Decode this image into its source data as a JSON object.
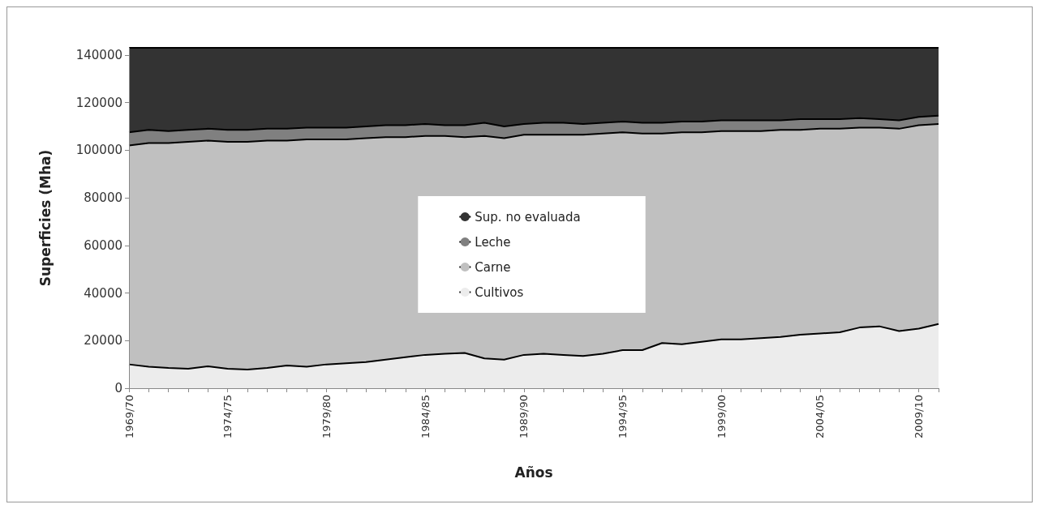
{
  "chart_data": {
    "type": "area",
    "stacked": true,
    "xlabel": "Años",
    "ylabel": "Superficies (Mha)",
    "categories": [
      "1969/70",
      null,
      null,
      null,
      null,
      "1974/75",
      null,
      null,
      null,
      null,
      "1979/80",
      null,
      null,
      null,
      null,
      "1984/85",
      null,
      null,
      null,
      null,
      "1989/90",
      null,
      null,
      null,
      null,
      "1994/95",
      null,
      null,
      null,
      null,
      "1999/00",
      null,
      null,
      null,
      null,
      "2004/05",
      null,
      null,
      null,
      null,
      "2009/10",
      null
    ],
    "series": [
      {
        "name": "Cultivos",
        "color": "#ececec",
        "values": [
          10000,
          9000,
          8500,
          8200,
          9200,
          8200,
          7800,
          8500,
          9500,
          9000,
          10000,
          10500,
          11000,
          12000,
          13000,
          14000,
          14500,
          14800,
          12500,
          12000,
          14000,
          14500,
          14000,
          13500,
          14500,
          16000,
          16000,
          19000,
          18500,
          19500,
          20500,
          20500,
          21000,
          21500,
          22500,
          23000,
          23500,
          25500,
          26000,
          24000,
          25000,
          27000
        ]
      },
      {
        "name": "Carne",
        "color": "#c0c0c0",
        "values": [
          92000,
          94000,
          94500,
          95300,
          94800,
          95300,
          95700,
          95500,
          94500,
          95500,
          94500,
          94000,
          94000,
          93500,
          92500,
          92000,
          91500,
          90700,
          93500,
          93000,
          92500,
          92000,
          92500,
          93000,
          92500,
          91500,
          91000,
          88000,
          89000,
          88000,
          87500,
          87500,
          87000,
          87000,
          86000,
          86000,
          85500,
          84000,
          83500,
          85000,
          85500,
          84000
        ]
      },
      {
        "name": "Leche",
        "color": "#808080",
        "values": [
          5500,
          5500,
          5000,
          5000,
          5000,
          5000,
          5000,
          5000,
          5000,
          5000,
          5000,
          5000,
          5000,
          5000,
          5000,
          5000,
          4500,
          5000,
          5500,
          5000,
          4500,
          5000,
          5000,
          4500,
          4500,
          4500,
          4500,
          4500,
          4500,
          4500,
          4500,
          4500,
          4500,
          4000,
          4500,
          4000,
          4000,
          4000,
          3500,
          3500,
          3500,
          3500
        ]
      },
      {
        "name": "Sup. no evaluada",
        "color": "#333333",
        "values": [
          35500,
          34500,
          35000,
          34500,
          34000,
          34500,
          34500,
          34000,
          34000,
          33500,
          33500,
          33500,
          33000,
          32500,
          32500,
          32000,
          32500,
          32500,
          31500,
          33000,
          32000,
          31500,
          31500,
          32000,
          31500,
          31000,
          31500,
          31500,
          31000,
          31000,
          30500,
          30500,
          30500,
          30500,
          30000,
          30000,
          30000,
          29500,
          30000,
          30500,
          29000,
          28500
        ]
      }
    ],
    "ylim": [
      0,
      143000
    ],
    "yticks": [
      0,
      20000,
      40000,
      60000,
      80000,
      100000,
      120000,
      140000
    ],
    "grid": false,
    "legend": "center"
  }
}
